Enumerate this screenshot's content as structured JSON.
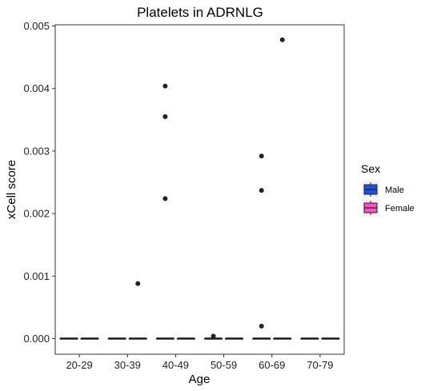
{
  "chart_data": {
    "type": "boxplot",
    "title": "Platelets in ADRNLG",
    "xlabel": "Age",
    "ylabel": "xCell score",
    "categories": [
      "20-29",
      "30-39",
      "40-49",
      "50-59",
      "60-69",
      "70-79"
    ],
    "ylim": [
      -0.00025,
      0.00502
    ],
    "yticks": [
      0.0,
      0.001,
      0.002,
      0.003,
      0.004,
      0.005
    ],
    "ytick_labels": [
      "0.000",
      "0.001",
      "0.002",
      "0.003",
      "0.004",
      "0.005"
    ],
    "grid": false,
    "legend": {
      "title": "Sex",
      "position": "right"
    },
    "series": [
      {
        "name": "Male",
        "color": "#1f4fe0",
        "boxes": [
          {
            "category": "20-29",
            "median": 0,
            "q1": 0,
            "q3": 0,
            "outliers": []
          },
          {
            "category": "30-39",
            "median": 0,
            "q1": 0,
            "q3": 0,
            "outliers": []
          },
          {
            "category": "40-49",
            "median": 0,
            "q1": 0,
            "q3": 0,
            "outliers": [
              0.00404,
              0.00355,
              0.00224
            ]
          },
          {
            "category": "50-59",
            "median": 0,
            "q1": 0,
            "q3": 0,
            "outliers": [
              4e-05
            ]
          },
          {
            "category": "60-69",
            "median": 0,
            "q1": 0,
            "q3": 0,
            "outliers": [
              0.00292,
              0.00237,
              0.0002
            ]
          },
          {
            "category": "70-79",
            "median": 0,
            "q1": 0,
            "q3": 0,
            "outliers": []
          }
        ]
      },
      {
        "name": "Female",
        "color": "#ff4fc8",
        "boxes": [
          {
            "category": "20-29",
            "median": 0,
            "q1": 0,
            "q3": 0,
            "outliers": []
          },
          {
            "category": "30-39",
            "median": 0,
            "q1": 0,
            "q3": 0,
            "outliers": [
              0.00088
            ]
          },
          {
            "category": "40-49",
            "median": 0,
            "q1": 0,
            "q3": 0,
            "outliers": []
          },
          {
            "category": "50-59",
            "median": 0,
            "q1": 0,
            "q3": 0,
            "outliers": []
          },
          {
            "category": "60-69",
            "median": 0,
            "q1": 0,
            "q3": 0,
            "outliers": [
              0.00478
            ]
          },
          {
            "category": "70-79",
            "median": 0,
            "q1": 0,
            "q3": 0,
            "outliers": []
          }
        ]
      }
    ]
  }
}
